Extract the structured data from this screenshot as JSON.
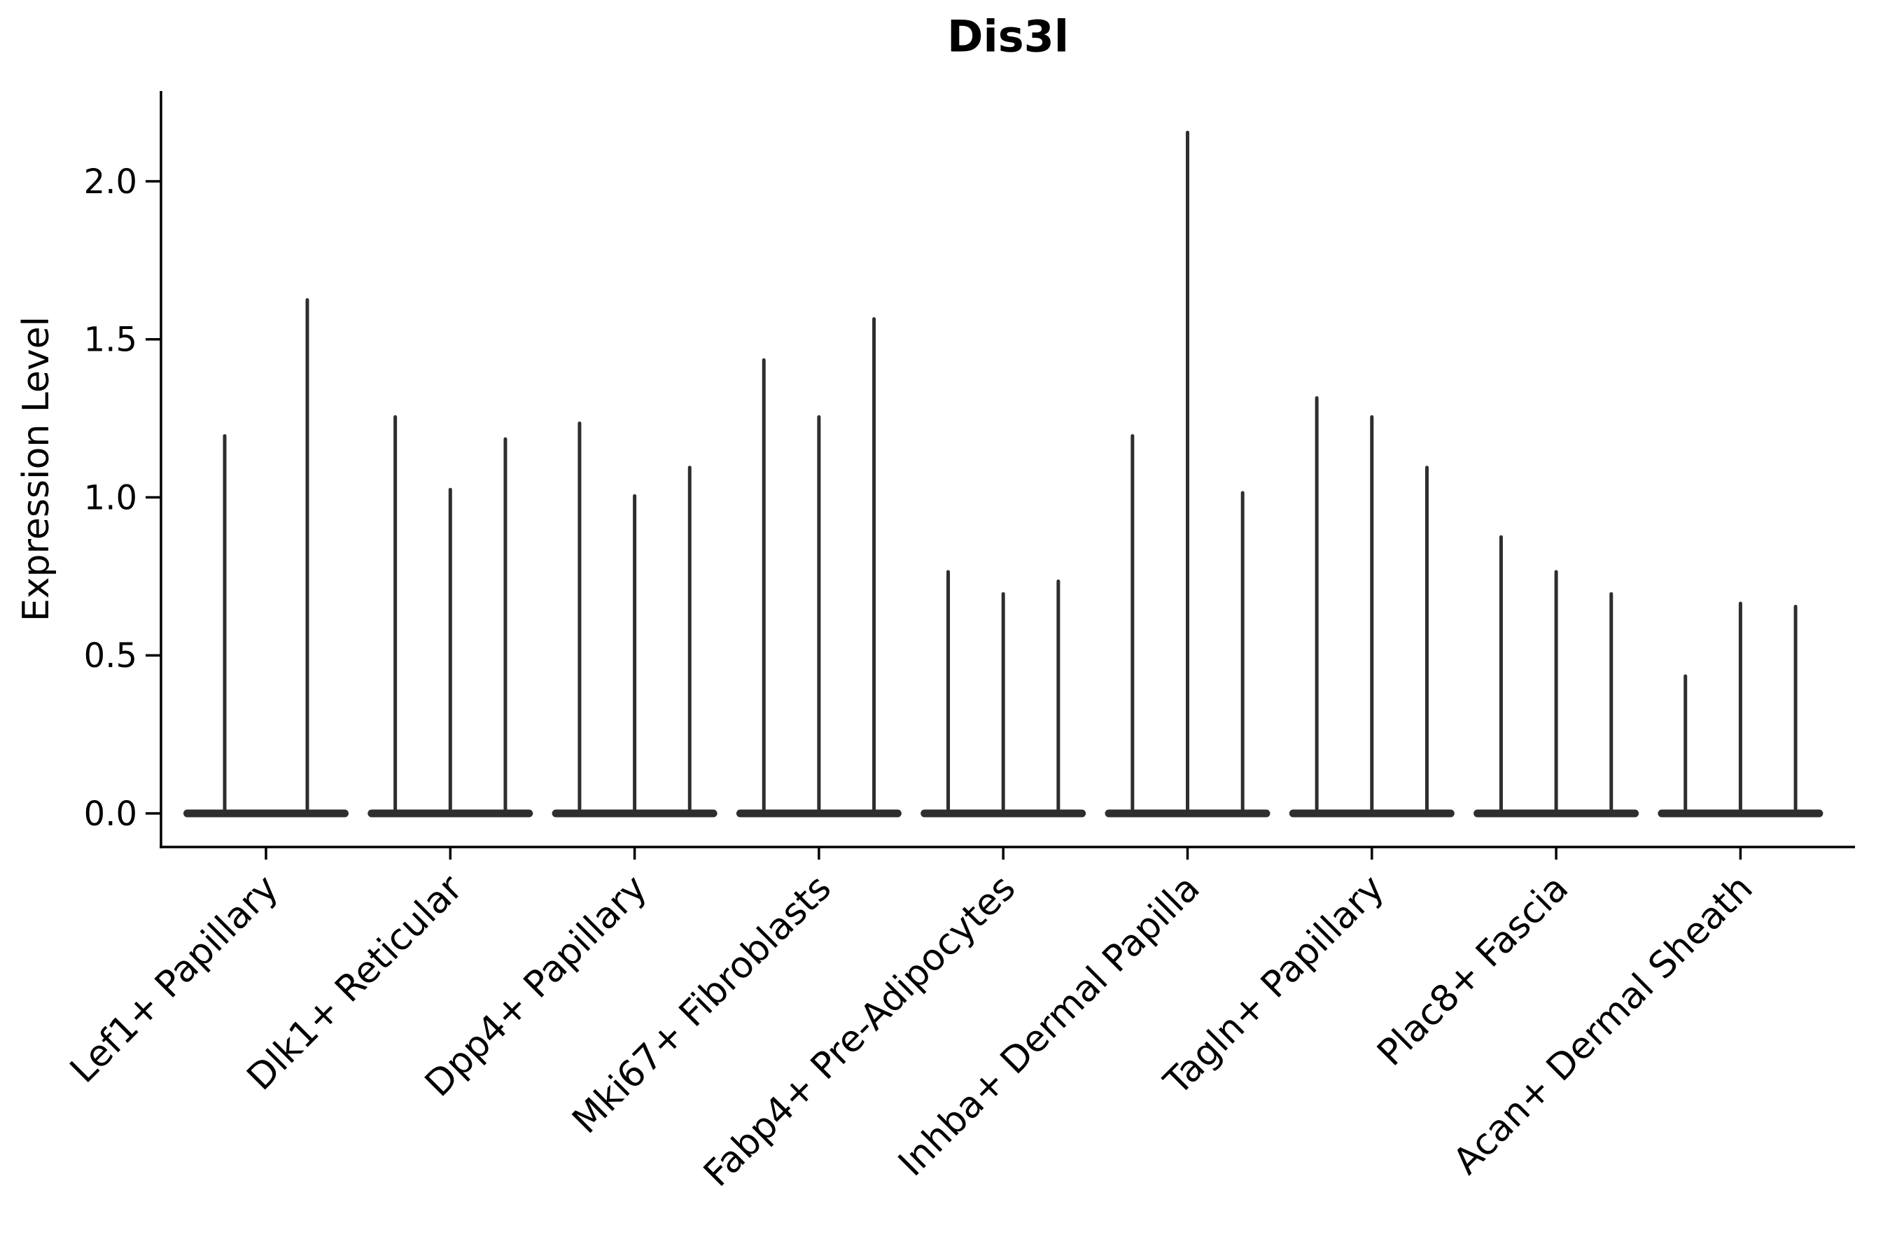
{
  "chart_data": {
    "type": "violin",
    "title": "Dis3l",
    "xlabel": "",
    "ylabel": "Expression Level",
    "ytick_labels": [
      "0.0",
      "0.5",
      "1.0",
      "1.5",
      "2.0"
    ],
    "ylim": [
      -0.11,
      2.29
    ],
    "categories": [
      "Lef1+ Papillary",
      "Dlk1+ Reticular",
      "Dpp4+ Papillary",
      "Mki67+ Fibroblasts",
      "Fabp4+ Pre-Adipocytes",
      "Inhba+ Dermal Papilla",
      "Tagln+ Papillary",
      "Plac8+ Fascia",
      "Acan+ Dermal Sheath"
    ],
    "groups": [
      {
        "category": "Lef1+ Papillary",
        "violin_max": [
          1.2,
          1.63
        ]
      },
      {
        "category": "Dlk1+ Reticular",
        "violin_max": [
          1.26,
          1.03,
          1.19
        ]
      },
      {
        "category": "Dpp4+ Papillary",
        "violin_max": [
          1.24,
          1.01,
          1.1
        ]
      },
      {
        "category": "Mki67+ Fibroblasts",
        "violin_max": [
          1.44,
          1.26,
          1.57
        ]
      },
      {
        "category": "Fabp4+ Pre-Adipocytes",
        "violin_max": [
          0.77,
          0.7,
          0.74
        ]
      },
      {
        "category": "Inhba+ Dermal Papilla",
        "violin_max": [
          1.2,
          2.16,
          1.02
        ]
      },
      {
        "category": "Tagln+ Papillary",
        "violin_max": [
          1.32,
          1.26,
          1.1
        ]
      },
      {
        "category": "Plac8+ Fascia",
        "violin_max": [
          0.88,
          0.77,
          0.7
        ]
      },
      {
        "category": "Acan+ Dermal Sheath",
        "violin_max": [
          0.44,
          0.67,
          0.66
        ]
      }
    ],
    "baseline_value": 0.0,
    "violin_color": "#2e2e2e",
    "axis_color": "#000000",
    "grid": "off",
    "legend": "none"
  }
}
